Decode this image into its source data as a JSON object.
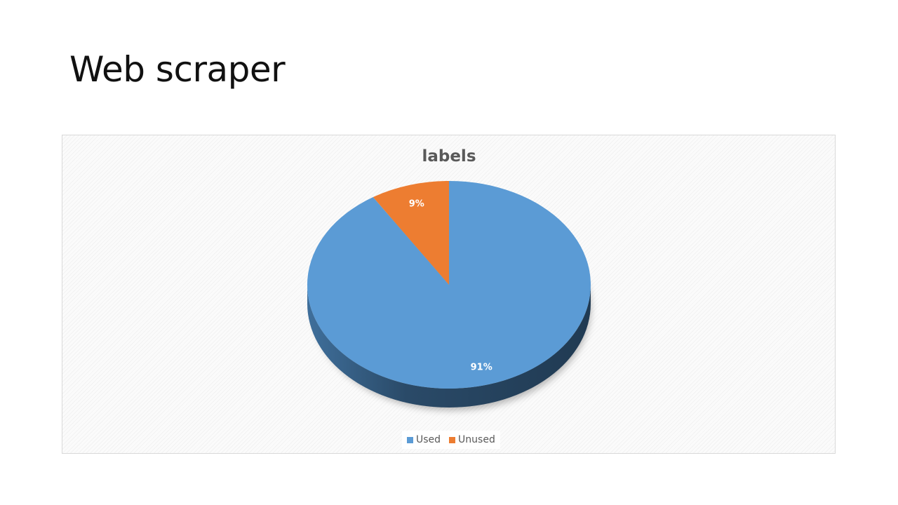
{
  "slide": {
    "title": "Web scraper"
  },
  "chart_data": {
    "type": "pie",
    "title": "labels",
    "categories": [
      "Used",
      "Unused"
    ],
    "values": [
      91,
      9
    ],
    "data_labels": [
      "91%",
      "9%"
    ],
    "colors": [
      "#5B9BD5",
      "#ED7D31"
    ],
    "legend_position": "bottom",
    "style": "3d"
  },
  "legend": {
    "items": [
      {
        "label": "Used",
        "color": "#5B9BD5"
      },
      {
        "label": "Unused",
        "color": "#ED7D31"
      }
    ]
  }
}
